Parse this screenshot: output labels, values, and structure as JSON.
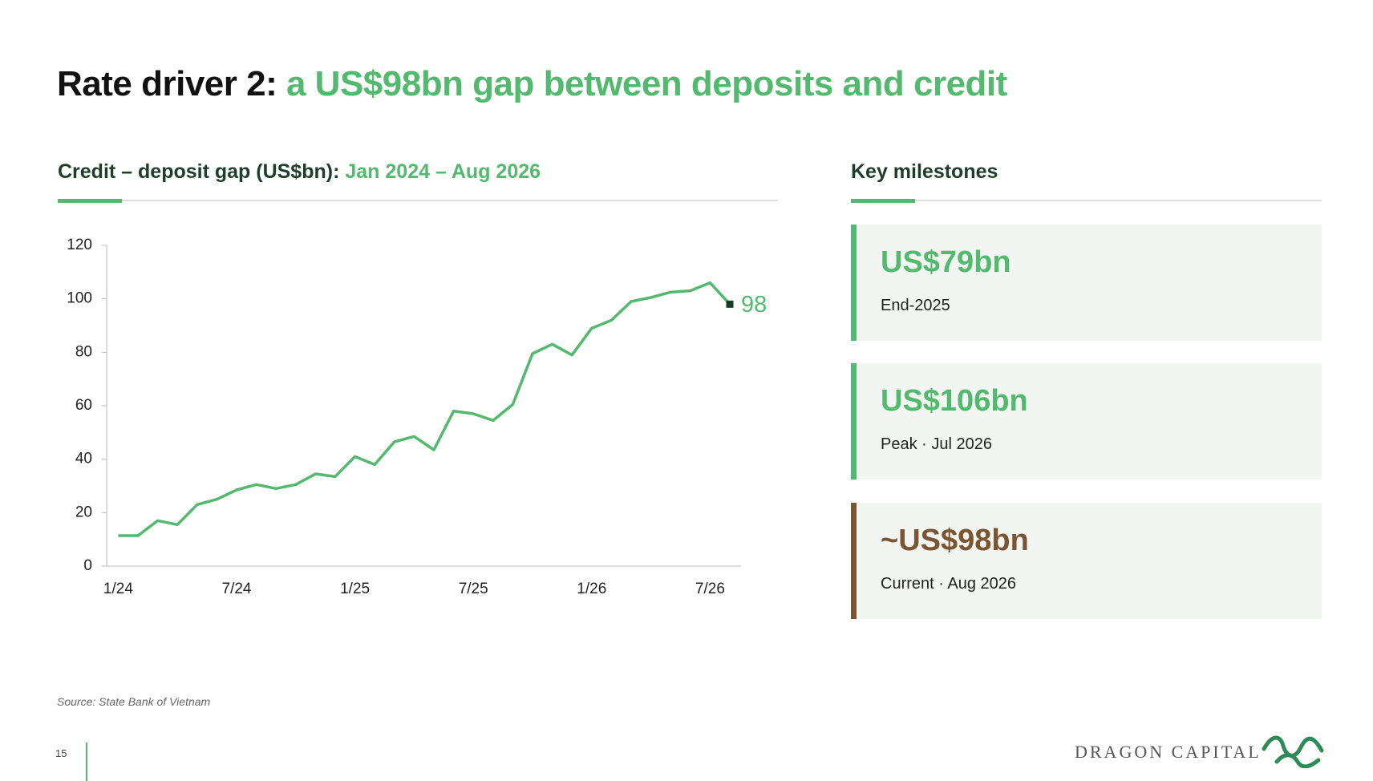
{
  "header": {
    "title_lead": "Rate driver 2:",
    "title_rest": "a US$98bn gap between deposits and credit"
  },
  "chart_data": {
    "type": "line",
    "title": "Credit – deposit gap (US$bn):",
    "subtitle": "Jan 2024 – Aug 2026",
    "categories": [
      "1/24",
      null,
      null,
      null,
      null,
      null,
      "7/24",
      null,
      null,
      null,
      null,
      null,
      "1/25",
      null,
      null,
      null,
      null,
      null,
      "7/25",
      null,
      null,
      null,
      null,
      null,
      "1/26",
      null,
      null,
      null,
      null,
      null,
      "7/26",
      null
    ],
    "values": [
      11.4,
      11.4,
      17,
      15.5,
      23,
      25,
      28.5,
      30.5,
      29,
      30.5,
      34.5,
      33.5,
      41,
      38,
      46.5,
      48.5,
      43.5,
      58,
      57,
      54.5,
      60.5,
      79.5,
      83,
      79,
      89,
      92,
      99,
      100.5,
      102.5,
      103,
      106,
      98
    ],
    "color": "#52b96f",
    "end_marker_color": "#1b3b2a",
    "ylim": [
      0,
      120
    ],
    "yticks": [
      0,
      20,
      40,
      60,
      80,
      100,
      120
    ],
    "grid": false
  },
  "milestones": {
    "title": "Key milestones",
    "items": [
      {
        "value": "US$79bn",
        "label": "End-2025",
        "color": "#52b96f"
      },
      {
        "value": "US$106bn",
        "label": "Peak · Jul 2026",
        "color": "#52b96f"
      },
      {
        "value": "~US$98bn",
        "label": "Current · Aug 2026",
        "color": "#7a5533"
      }
    ]
  },
  "footer": {
    "source": "Source: State Bank of Vietnam",
    "page": 15,
    "logo": "DRAGON CAPITAL"
  }
}
